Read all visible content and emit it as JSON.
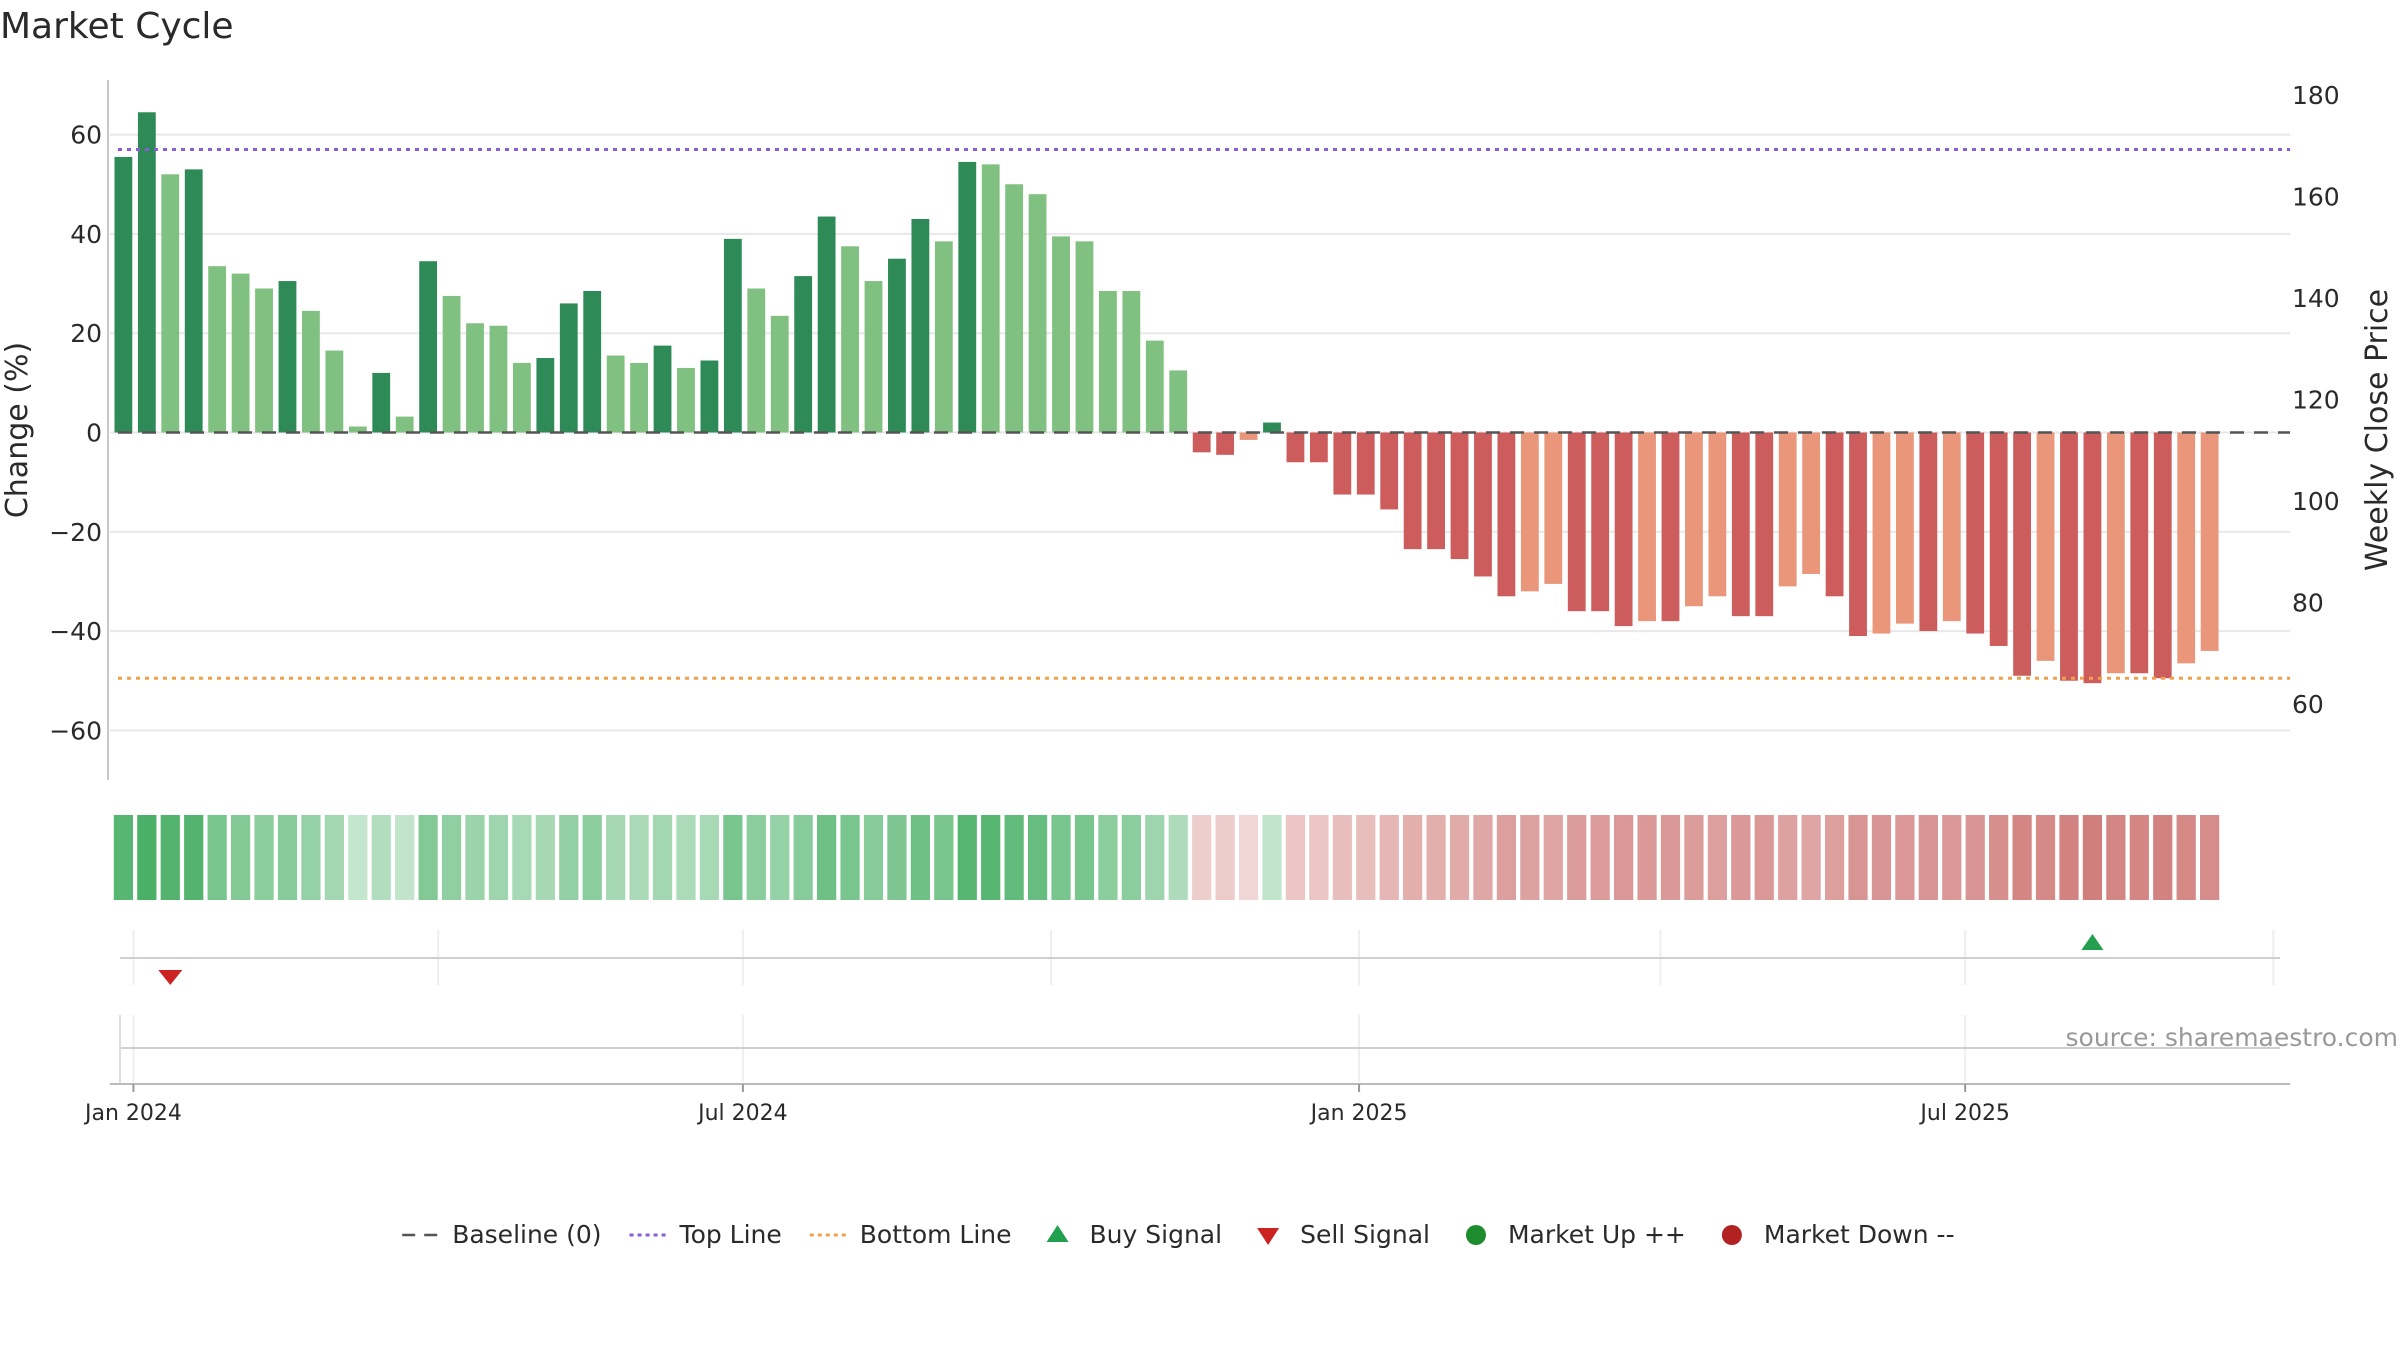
{
  "colors": {
    "grid": "#e8e8e8",
    "axis": "#c8c8c8",
    "baseline": "#555555",
    "top_line": "#8a5cd6",
    "bottom_line": "#f0a04b",
    "strong_up": "#2e8b57",
    "light_up": "#80c080",
    "strong_down": "#cd5c5c",
    "light_down": "#e9967a",
    "buy": "#22a050",
    "sell": "#cc2222",
    "market_up": "#1e8c2e",
    "market_down": "#b22222"
  },
  "chart_data": {
    "type": "bar",
    "title": "Market Cycle",
    "ylabel_left": "Change (%)",
    "ylabel_right": "Weekly Close Price",
    "ylim_left": [
      -70,
      71
    ],
    "ylim_right": [
      45,
      183
    ],
    "yticks_left": [
      60,
      40,
      20,
      0,
      -20,
      -40,
      -60
    ],
    "yticks_left_labels": [
      "60",
      "40",
      "20",
      "0",
      "−20",
      "−40",
      "−60"
    ],
    "yticks_right": [
      180,
      160,
      140,
      120,
      100,
      80,
      60
    ],
    "xlim": [
      "2023-12-25",
      "2025-10-06"
    ],
    "x_ticks": [
      {
        "date": "2024-01-01",
        "label": "Jan 2024"
      },
      {
        "date": "2024-07-01",
        "label": "Jul 2024"
      },
      {
        "date": "2025-01-01",
        "label": "Jan 2025"
      },
      {
        "date": "2025-07-01",
        "label": "Jul 2025"
      }
    ],
    "start_date": "2023-12-29",
    "week_step_days": 7,
    "grid": true,
    "reference_lines": {
      "baseline": 0,
      "top_line": 57,
      "bottom_line": -49.5
    },
    "values": [
      55.5,
      64.5,
      52,
      53,
      33.5,
      32,
      29,
      30.5,
      24.5,
      16.5,
      1.2,
      12,
      3.2,
      34.5,
      27.5,
      22,
      21.5,
      14,
      15,
      26,
      28.5,
      15.5,
      14,
      17.5,
      13,
      14.5,
      39,
      29,
      23.5,
      31.5,
      43.5,
      37.5,
      30.5,
      35,
      43,
      38.5,
      54.5,
      54,
      50,
      48,
      39.5,
      38.5,
      28.5,
      28.5,
      18.5,
      12.5,
      -4,
      -4.5,
      -1.5,
      2,
      -6,
      -6,
      -12.5,
      -12.5,
      -15.5,
      -23.5,
      -23.5,
      -25.5,
      -29,
      -33,
      -32,
      -30.5,
      -36,
      -36,
      -39,
      -38,
      -38,
      -35,
      -33,
      -37,
      -37,
      -31,
      -28.5,
      -33,
      -41,
      -40.5,
      -38.5,
      -40,
      -38,
      -40.5,
      -43,
      -49,
      -46,
      -50,
      -50.5,
      -48.5,
      -48.5,
      -49.5,
      -46.5,
      -44
    ],
    "shades": [
      "S",
      "S",
      "L",
      "S",
      "L",
      "L",
      "L",
      "S",
      "L",
      "L",
      "L",
      "S",
      "L",
      "S",
      "L",
      "L",
      "L",
      "L",
      "S",
      "S",
      "S",
      "L",
      "L",
      "S",
      "L",
      "S",
      "S",
      "L",
      "L",
      "S",
      "S",
      "L",
      "L",
      "S",
      "S",
      "L",
      "S",
      "L",
      "L",
      "L",
      "L",
      "L",
      "L",
      "L",
      "L",
      "L",
      "S",
      "S",
      "L",
      "S",
      "S",
      "S",
      "S",
      "S",
      "S",
      "S",
      "S",
      "S",
      "S",
      "S",
      "L",
      "L",
      "S",
      "S",
      "S",
      "L",
      "S",
      "L",
      "L",
      "S",
      "S",
      "L",
      "L",
      "S",
      "S",
      "L",
      "L",
      "S",
      "L",
      "S",
      "S",
      "S",
      "L",
      "S",
      "S",
      "L",
      "S",
      "S",
      "L",
      "L"
    ],
    "heat_strip": [
      0.78,
      0.85,
      0.8,
      0.8,
      0.6,
      0.55,
      0.5,
      0.52,
      0.45,
      0.38,
      0.2,
      0.3,
      0.22,
      0.55,
      0.48,
      0.42,
      0.4,
      0.35,
      0.36,
      0.46,
      0.5,
      0.36,
      0.34,
      0.38,
      0.33,
      0.35,
      0.6,
      0.5,
      0.45,
      0.52,
      0.66,
      0.6,
      0.52,
      0.58,
      0.66,
      0.6,
      0.78,
      0.78,
      0.72,
      0.7,
      0.6,
      0.6,
      0.5,
      0.5,
      0.4,
      0.32,
      -0.2,
      -0.22,
      -0.15,
      0.22,
      -0.25,
      -0.25,
      -0.3,
      -0.3,
      -0.35,
      -0.4,
      -0.4,
      -0.42,
      -0.45,
      -0.5,
      -0.48,
      -0.46,
      -0.52,
      -0.52,
      -0.55,
      -0.54,
      -0.54,
      -0.52,
      -0.5,
      -0.54,
      -0.54,
      -0.48,
      -0.46,
      -0.5,
      -0.57,
      -0.56,
      -0.55,
      -0.56,
      -0.54,
      -0.56,
      -0.6,
      -0.66,
      -0.63,
      -0.68,
      -0.7,
      -0.66,
      -0.66,
      -0.68,
      -0.64,
      -0.62
    ],
    "signals": [
      {
        "type": "sell",
        "date": "2024-01-12"
      },
      {
        "type": "buy",
        "date": "2025-08-08"
      }
    ],
    "legend": {
      "position": "bottom",
      "items": [
        {
          "label": "Baseline (0)",
          "marker": "dashed-gray"
        },
        {
          "label": "Top Line",
          "marker": "dotted-purple"
        },
        {
          "label": "Bottom Line",
          "marker": "dotted-orange"
        },
        {
          "label": "Buy Signal",
          "marker": "triangle-up-green"
        },
        {
          "label": "Sell Signal",
          "marker": "triangle-down-red"
        },
        {
          "label": "Market Up ++",
          "marker": "circle-green"
        },
        {
          "label": "Market Down --",
          "marker": "circle-red"
        }
      ]
    },
    "source_note": "source: sharemaestro.com"
  }
}
